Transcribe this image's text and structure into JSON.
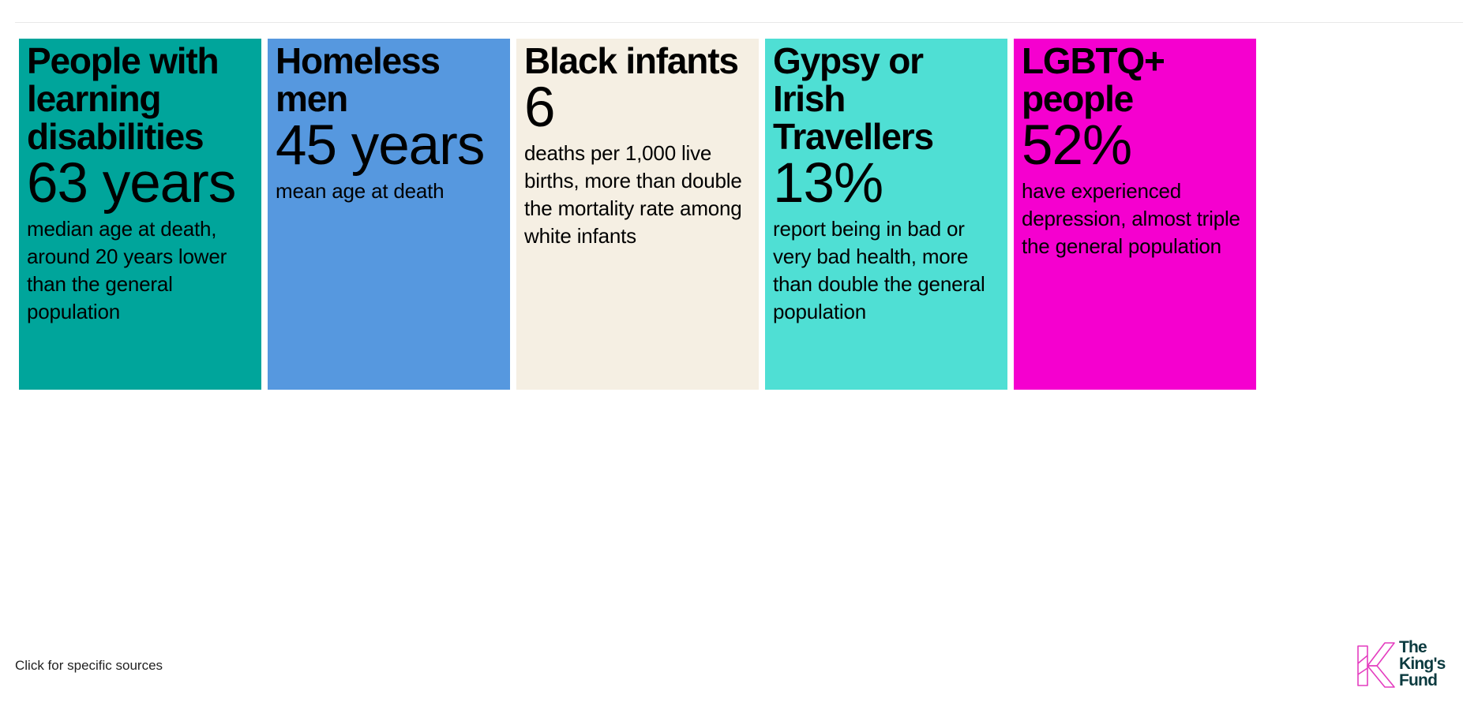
{
  "cards": [
    {
      "title": "People with learning disabilities",
      "stat": "63 years",
      "description": "median age at death, around 20 years lower than the general population",
      "color": "#00a59b"
    },
    {
      "title": "Homeless men",
      "stat": "45 years",
      "description": "mean age at death",
      "color": "#5698df"
    },
    {
      "title": "Black infants",
      "stat": "6",
      "description": "deaths per 1,000 live births, more than double the mortality rate among white infants",
      "color": "#f5efe3"
    },
    {
      "title": "Gypsy or Irish Travellers",
      "stat": "13%",
      "description": "report being in bad or very bad health, more than double the general population",
      "color": "#4fdfd4"
    },
    {
      "title": "LGBTQ+ people",
      "stat": "52%",
      "description": "have experienced depression, almost triple the general population",
      "color": "#f500cf"
    }
  ],
  "footer": {
    "sources_link": "Click for specific sources"
  },
  "logo": {
    "line1": "The",
    "line2": "King's",
    "line3": "Fund",
    "icon": "kings-fund-k-icon",
    "icon_color": "#e43dbf",
    "text_color": "#0b3a3f"
  }
}
